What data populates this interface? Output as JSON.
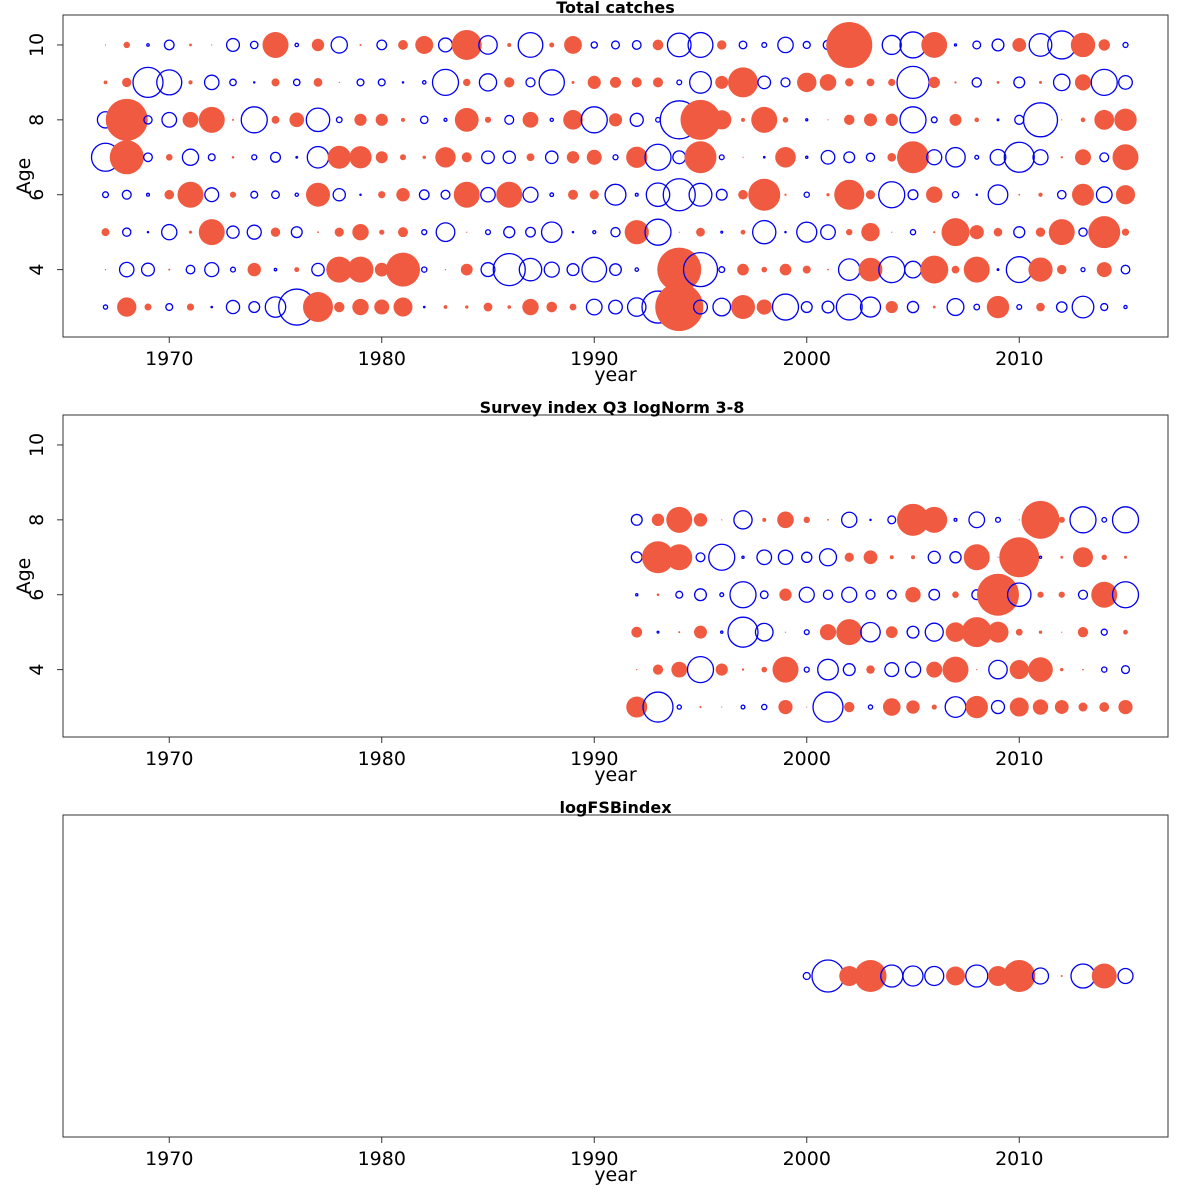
{
  "colors": {
    "positive": "#ef5a40",
    "negative": "#0000ee",
    "frame": "#333333"
  },
  "chart_data": [
    {
      "type": "scatter",
      "subtype": "residual-bubble",
      "title": "Total catches",
      "xlabel": "year",
      "ylabel": "Age",
      "xlim": [
        1965,
        2017
      ],
      "ylim": [
        2.2,
        10.8
      ],
      "xticks": [
        "1970",
        "1980",
        "1990",
        "2000",
        "2010"
      ],
      "yticks": [
        "4",
        "6",
        "8",
        "10"
      ],
      "grid": false,
      "legend": "none",
      "years": [
        1967,
        2015
      ],
      "ages": [
        3,
        10
      ],
      "seed": 11,
      "highlights": [
        {
          "age": 3,
          "year": 1976,
          "r": -1.8
        },
        {
          "age": 3,
          "year": 1977,
          "r": 1.5
        },
        {
          "age": 3,
          "year": 1993,
          "r": -1.6
        },
        {
          "age": 3,
          "year": 1994,
          "r": 2.4
        },
        {
          "age": 4,
          "year": 1981,
          "r": 1.7
        },
        {
          "age": 4,
          "year": 1986,
          "r": -1.6
        },
        {
          "age": 4,
          "year": 1994,
          "r": 2.2
        },
        {
          "age": 4,
          "year": 1995,
          "r": -1.7
        },
        {
          "age": 4,
          "year": 2006,
          "r": 1.4
        },
        {
          "age": 5,
          "year": 2007,
          "r": 1.4
        },
        {
          "age": 5,
          "year": 2014,
          "r": 1.6
        },
        {
          "age": 6,
          "year": 1998,
          "r": 1.6
        },
        {
          "age": 6,
          "year": 1994,
          "r": -1.6
        },
        {
          "age": 6,
          "year": 2002,
          "r": 1.5
        },
        {
          "age": 7,
          "year": 1967,
          "r": -1.4
        },
        {
          "age": 7,
          "year": 1968,
          "r": 1.7
        },
        {
          "age": 7,
          "year": 1995,
          "r": 1.6
        },
        {
          "age": 7,
          "year": 2005,
          "r": 1.6
        },
        {
          "age": 7,
          "year": 2010,
          "r": -1.5
        },
        {
          "age": 8,
          "year": 1968,
          "r": 2.1
        },
        {
          "age": 8,
          "year": 1994,
          "r": -1.9
        },
        {
          "age": 8,
          "year": 1995,
          "r": 2.0
        },
        {
          "age": 8,
          "year": 2011,
          "r": -1.7
        },
        {
          "age": 9,
          "year": 1969,
          "r": -1.5
        },
        {
          "age": 9,
          "year": 1997,
          "r": 1.5
        },
        {
          "age": 9,
          "year": 2005,
          "r": -1.6
        },
        {
          "age": 10,
          "year": 1984,
          "r": 1.5
        },
        {
          "age": 10,
          "year": 2002,
          "r": 2.3
        },
        {
          "age": 10,
          "year": 2012,
          "r": -1.4
        }
      ]
    },
    {
      "type": "scatter",
      "subtype": "residual-bubble",
      "title": "Survey index Q3 logNorm 3-8",
      "xlabel": "year",
      "ylabel": "Age",
      "xlim": [
        1965,
        2017
      ],
      "ylim": [
        2.2,
        10.8
      ],
      "xticks": [
        "1970",
        "1980",
        "1990",
        "2000",
        "2010"
      ],
      "yticks": [
        "4",
        "6",
        "8",
        "10"
      ],
      "grid": false,
      "legend": "none",
      "years": [
        1992,
        2015
      ],
      "ages": [
        3,
        8
      ],
      "seed": 29,
      "highlights": [
        {
          "age": 3,
          "year": 1993,
          "r": -1.5
        },
        {
          "age": 3,
          "year": 2001,
          "r": -1.5
        },
        {
          "age": 5,
          "year": 1997,
          "r": -1.5
        },
        {
          "age": 5,
          "year": 2008,
          "r": 1.5
        },
        {
          "age": 6,
          "year": 2009,
          "r": 2.1
        },
        {
          "age": 7,
          "year": 1993,
          "r": 1.6
        },
        {
          "age": 7,
          "year": 2010,
          "r": 2.0
        },
        {
          "age": 8,
          "year": 2005,
          "r": 1.6
        },
        {
          "age": 8,
          "year": 2011,
          "r": 1.9
        }
      ]
    },
    {
      "type": "scatter",
      "subtype": "residual-bubble",
      "title": "logFSBindex",
      "xlabel": "year",
      "ylabel": "",
      "xlim": [
        1965,
        2017
      ],
      "xticks": [
        "1970",
        "1980",
        "1990",
        "2000",
        "2010"
      ],
      "yticks": [],
      "grid": false,
      "legend": "none",
      "points": [
        {
          "year": 2000,
          "r": -0.35
        },
        {
          "year": 2001,
          "r": -1.6
        },
        {
          "year": 2002,
          "r": 1.0
        },
        {
          "year": 2003,
          "r": 1.6
        },
        {
          "year": 2004,
          "r": -1.1
        },
        {
          "year": 2005,
          "r": -1.0
        },
        {
          "year": 2006,
          "r": -0.95
        },
        {
          "year": 2007,
          "r": 0.95
        },
        {
          "year": 2008,
          "r": -1.1
        },
        {
          "year": 2009,
          "r": 1.0
        },
        {
          "year": 2010,
          "r": 1.6
        },
        {
          "year": 2011,
          "r": -0.8
        },
        {
          "year": 2012,
          "r": 0.1
        },
        {
          "year": 2013,
          "r": -1.2
        },
        {
          "year": 2014,
          "r": 1.25
        },
        {
          "year": 2015,
          "r": -0.75
        }
      ]
    }
  ]
}
